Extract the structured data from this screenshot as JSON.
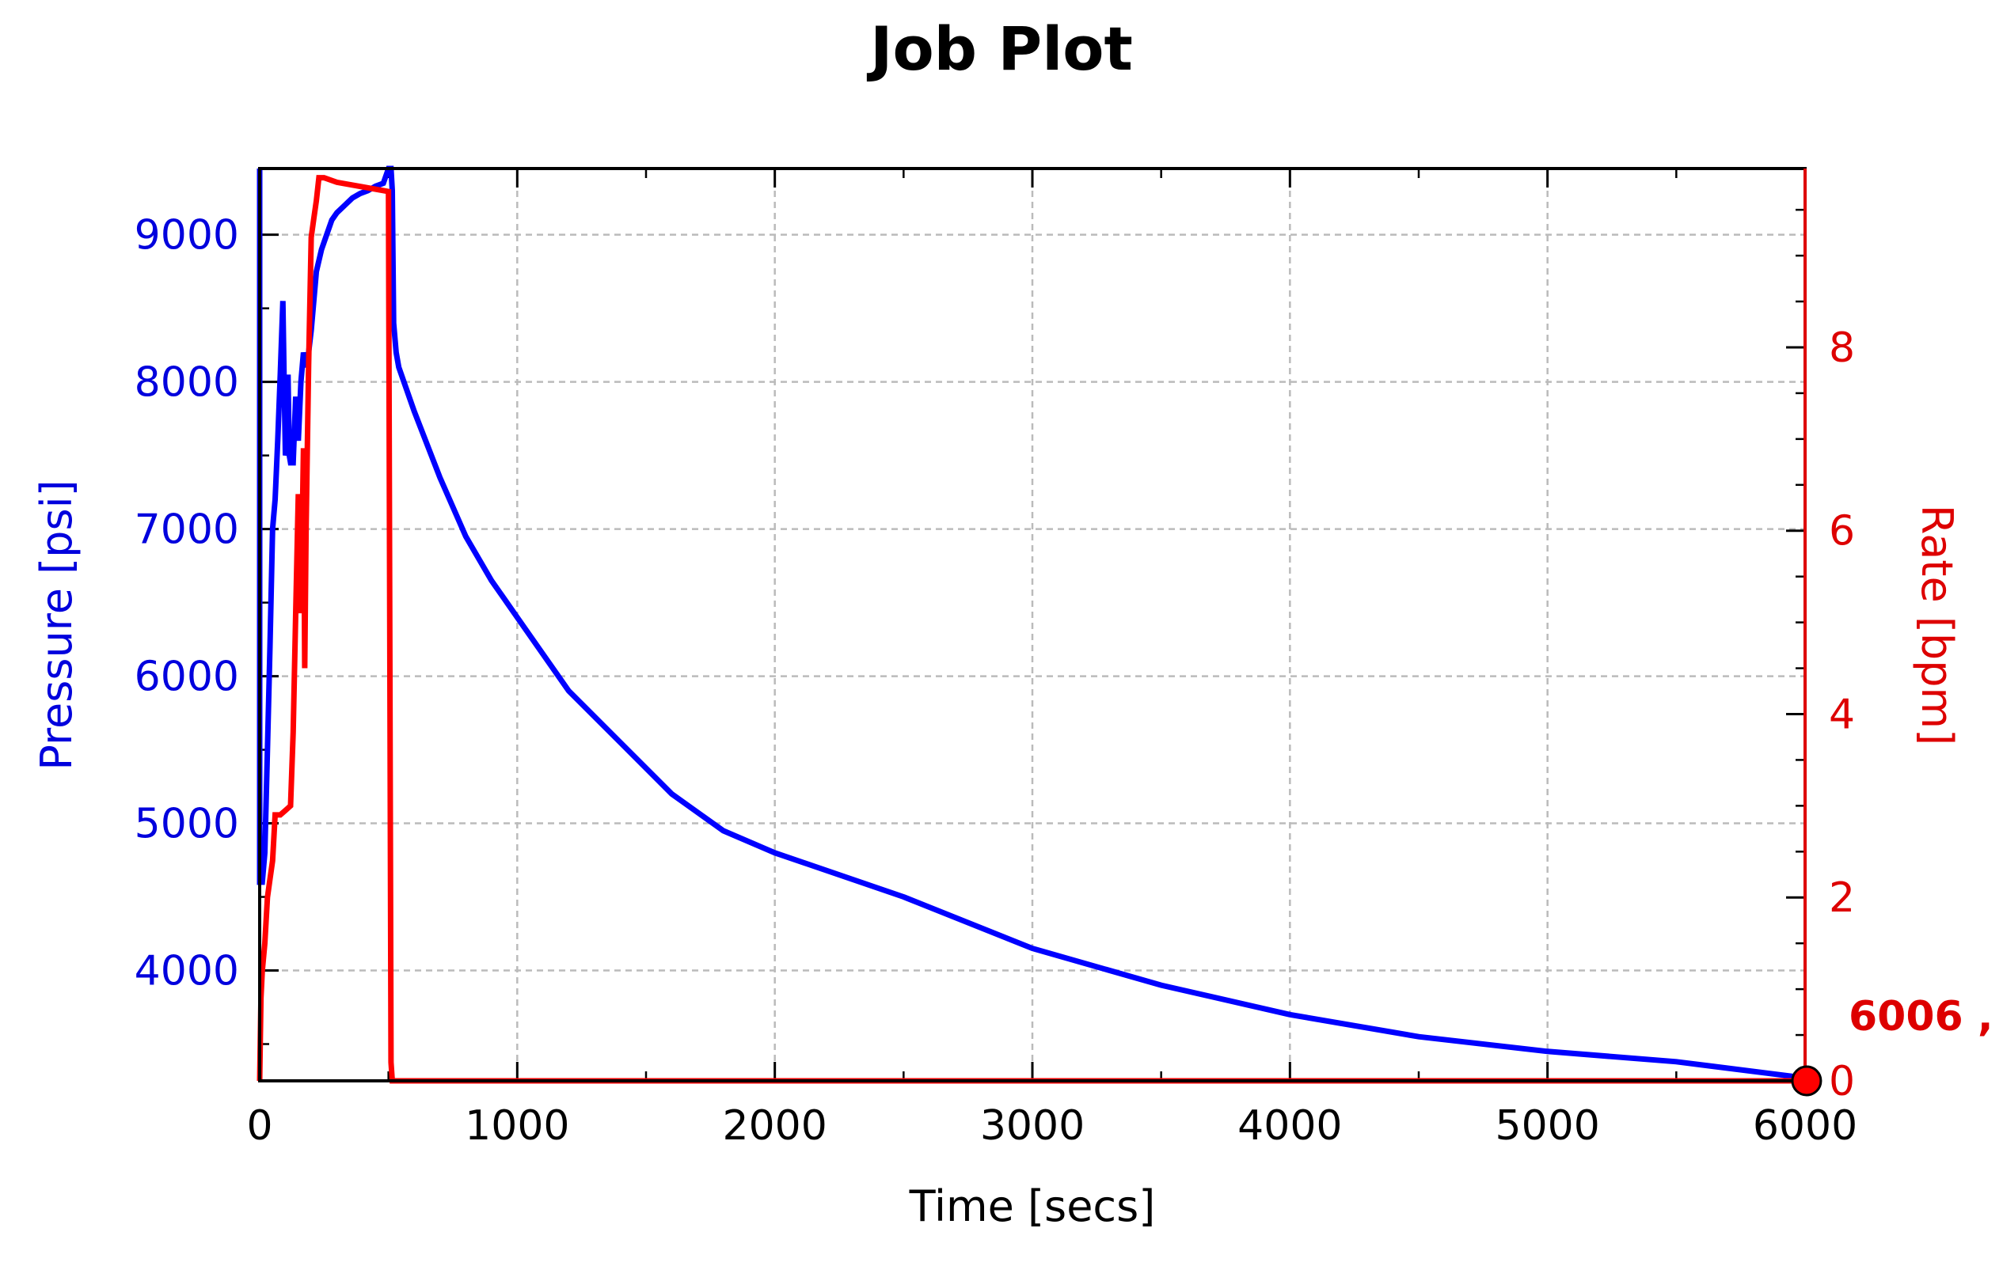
{
  "chart_data": {
    "type": "line",
    "title": "Job Plot",
    "xlabel": "Time [secs]",
    "ylabel_left": "Pressure [psi]",
    "ylabel_right": "Rate [bpm]",
    "xlim": [
      0,
      6000
    ],
    "ylim_left": [
      3250,
      9450
    ],
    "ylim_right": [
      0,
      9.95
    ],
    "x_ticks": [
      0,
      1000,
      2000,
      3000,
      4000,
      5000,
      6000
    ],
    "y_ticks_left": [
      4000,
      5000,
      6000,
      7000,
      8000,
      9000
    ],
    "y_ticks_right": [
      0,
      2,
      4,
      6,
      8
    ],
    "grid": true,
    "colors": {
      "pressure": "#0000ff",
      "rate": "#ff0000",
      "grid": "#bbbbbb"
    },
    "annotation": {
      "text": "6006 , ",
      "x": 6006,
      "y": 0
    },
    "series": [
      {
        "axis": "left",
        "color": "#0000ff",
        "x": [
          0,
          0,
          10,
          20,
          30,
          40,
          50,
          60,
          70,
          80,
          90,
          95,
          100,
          105,
          110,
          115,
          120,
          130,
          140,
          150,
          160,
          170,
          180,
          190,
          200,
          220,
          240,
          260,
          280,
          300,
          330,
          360,
          390,
          420,
          450,
          480,
          500,
          510,
          515,
          520,
          530,
          540,
          560,
          600,
          700,
          800,
          900,
          1000,
          1200,
          1400,
          1600,
          1800,
          2000,
          2500,
          3000,
          3500,
          4000,
          4500,
          5000,
          5500,
          6000
        ],
        "y": [
          9450,
          4600,
          4600,
          4800,
          5500,
          6200,
          7000,
          7200,
          7600,
          8050,
          8550,
          8000,
          7500,
          7550,
          8050,
          7500,
          7450,
          7450,
          7900,
          7600,
          8000,
          8200,
          8100,
          8200,
          8350,
          8750,
          8900,
          9000,
          9100,
          9150,
          9200,
          9250,
          9280,
          9300,
          9330,
          9350,
          9450,
          9450,
          9300,
          8400,
          8200,
          8100,
          8000,
          7800,
          7350,
          6950,
          6650,
          6400,
          5900,
          5550,
          5200,
          4950,
          4800,
          4500,
          4150,
          3900,
          3700,
          3550,
          3450,
          3380,
          3270
        ]
      },
      {
        "axis": "right",
        "color": "#ff0000",
        "x": [
          0,
          5,
          10,
          20,
          30,
          40,
          50,
          60,
          80,
          100,
          120,
          130,
          140,
          150,
          160,
          170,
          175,
          180,
          190,
          200,
          210,
          220,
          230,
          250,
          300,
          400,
          500,
          505,
          510,
          515,
          520,
          540,
          600,
          1000,
          2000,
          3000,
          4000,
          5000,
          6000
        ],
        "y": [
          0,
          0.9,
          1.2,
          1.5,
          2.0,
          2.2,
          2.4,
          2.9,
          2.9,
          2.95,
          3.0,
          3.8,
          5.1,
          6.4,
          5.1,
          6.9,
          4.5,
          6.0,
          7.8,
          9.2,
          9.4,
          9.6,
          9.85,
          9.85,
          9.8,
          9.75,
          9.7,
          5.0,
          0.2,
          0,
          0,
          0,
          0,
          0,
          0,
          0,
          0,
          0,
          0
        ]
      }
    ]
  }
}
